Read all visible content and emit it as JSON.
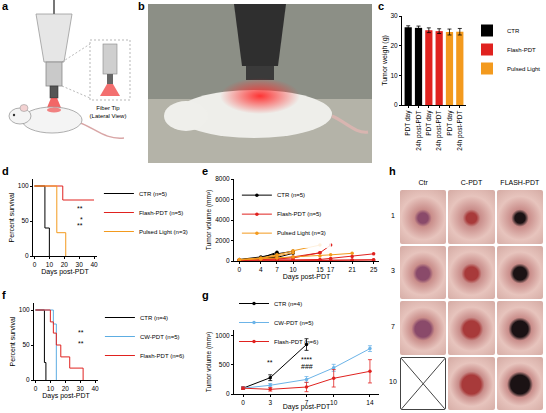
{
  "a": {
    "panel": "a",
    "type": "diagram",
    "labels": [
      "Fiber Tip",
      "(Lateral View)"
    ]
  },
  "b": {
    "panel": "b",
    "type": "photo"
  },
  "h": {
    "panel": "h",
    "type": "photo_grid",
    "columns": [
      "Ctr",
      "C-PDT",
      "FLASH-PDT"
    ],
    "rows": [
      "1",
      "3",
      "7",
      "10"
    ],
    "missing": [
      {
        "row": "10",
        "column": "Ctr"
      }
    ]
  },
  "chart_data": [
    {
      "panel": "c",
      "type": "bar",
      "ylabel": "Tumor weigh (g)",
      "categories": [
        "PDT day",
        "24h post-PDT",
        "PDT day",
        "24h post-PDT",
        "PDT day",
        "24h post-PDT"
      ],
      "ylim": [
        0,
        30
      ],
      "yticks": [
        0,
        10,
        20,
        30
      ],
      "legend": "right",
      "series": [
        {
          "name": "CTR",
          "color": "#000000",
          "values": [
            26.2,
            26.0,
            null,
            null,
            null,
            null
          ],
          "errors": [
            0.5,
            0.6,
            null,
            null,
            null,
            null
          ]
        },
        {
          "name": "Flash-PDT",
          "color": "#e0221f",
          "values": [
            null,
            null,
            25.2,
            24.9,
            null,
            null
          ],
          "errors": [
            null,
            null,
            0.8,
            0.8,
            null,
            null
          ]
        },
        {
          "name": "Pulsed Light",
          "color": "#f39a1e",
          "values": [
            null,
            null,
            null,
            null,
            24.6,
            24.7
          ],
          "errors": [
            null,
            null,
            null,
            null,
            1.0,
            1.1
          ]
        }
      ]
    },
    {
      "panel": "d",
      "type": "line",
      "line_style": "step",
      "xlabel": "Days post-PDT",
      "ylabel": "Percent survival",
      "xlim": [
        -1,
        42
      ],
      "xticks": [
        0,
        10,
        20,
        30,
        40
      ],
      "ylim": [
        0,
        110
      ],
      "yticks": [
        0,
        50,
        100
      ],
      "legend": "right",
      "annotations": [
        "**",
        "*",
        "**"
      ],
      "series": [
        {
          "name": "CTR (n=5)",
          "color": "#000000",
          "x": [
            0,
            7,
            10
          ],
          "values": [
            100,
            40,
            0
          ]
        },
        {
          "name": "Flash-PDT (n=5)",
          "color": "#e0221f",
          "x": [
            0,
            19,
            40
          ],
          "values": [
            100,
            80,
            80
          ]
        },
        {
          "name": "Pulsed Light (n=3)",
          "color": "#f39a1e",
          "x": [
            0,
            15,
            21
          ],
          "values": [
            100,
            33.3,
            0
          ]
        }
      ]
    },
    {
      "panel": "e",
      "type": "line",
      "marker": "circle",
      "xlabel": "Days post-PDT",
      "ylabel": "Tumor volume (mm³)",
      "xlim": [
        -1,
        26
      ],
      "xticks": [
        0,
        4,
        7,
        10,
        15,
        17,
        21,
        25
      ],
      "ylim": [
        0,
        8000
      ],
      "yticks": [
        0,
        2000,
        4000,
        6000,
        8000
      ],
      "legend": "upper left",
      "series": [
        {
          "name": "CTR (n=5)",
          "color": "#000000",
          "x": [
            0,
            4,
            7,
            10
          ],
          "values": [
            150,
            400,
            700,
            950
          ]
        },
        {
          "name": "CTR (n=5)",
          "color": "#000000",
          "x": [
            0,
            4,
            7
          ],
          "values": [
            120,
            300,
            850
          ]
        },
        {
          "name": "CTR (n=5)",
          "color": "#000000",
          "x": [
            0,
            4,
            7
          ],
          "values": [
            100,
            200,
            450
          ]
        },
        {
          "name": "CTR (n=5)",
          "color": "#000000",
          "x": [
            0,
            4,
            7,
            10
          ],
          "values": [
            80,
            250,
            350,
            750
          ]
        },
        {
          "name": "CTR (n=5)",
          "color": "#000000",
          "x": [
            0,
            4,
            7
          ],
          "values": [
            100,
            150,
            400
          ]
        },
        {
          "name": "Flash-PDT (n=5)",
          "color": "#e0221f",
          "x": [
            0,
            4,
            7,
            10,
            15,
            17
          ],
          "values": [
            100,
            150,
            250,
            400,
            800,
            1550
          ]
        },
        {
          "name": "Flash-PDT (n=5)",
          "color": "#e0221f",
          "x": [
            0,
            4,
            7,
            10,
            15
          ],
          "values": [
            100,
            120,
            200,
            300,
            800
          ]
        },
        {
          "name": "Flash-PDT (n=5)",
          "color": "#e0221f",
          "x": [
            0,
            4,
            7,
            10,
            15,
            17,
            21,
            25
          ],
          "values": [
            80,
            60,
            50,
            40,
            60,
            80,
            100,
            120
          ]
        },
        {
          "name": "Flash-PDT (n=5)",
          "color": "#e0221f",
          "x": [
            0,
            4,
            7,
            10,
            15,
            17,
            21,
            25
          ],
          "values": [
            90,
            70,
            60,
            50,
            50,
            60,
            80,
            100
          ]
        },
        {
          "name": "Flash-PDT (n=5)",
          "color": "#e0221f",
          "x": [
            0,
            4,
            7,
            10,
            15,
            17,
            21,
            25
          ],
          "values": [
            100,
            90,
            80,
            100,
            150,
            250,
            450,
            700
          ]
        },
        {
          "name": "Pulsed Light (n=3)",
          "color": "#f39a1e",
          "x": [
            0,
            4,
            7,
            10,
            15
          ],
          "values": [
            150,
            300,
            600,
            1000,
            1550
          ]
        },
        {
          "name": "Pulsed Light (n=3)",
          "color": "#f39a1e",
          "x": [
            0,
            4,
            7,
            10,
            15,
            17,
            21
          ],
          "values": [
            120,
            200,
            300,
            400,
            500,
            600,
            750
          ]
        },
        {
          "name": "Pulsed Light (n=3)",
          "color": "#f39a1e",
          "x": [
            0,
            4,
            7,
            10
          ],
          "values": [
            100,
            250,
            500,
            800
          ]
        }
      ]
    },
    {
      "panel": "f",
      "type": "line",
      "line_style": "step",
      "xlabel": "Days post-PDT",
      "ylabel": "Percent survival",
      "xlim": [
        -1,
        42
      ],
      "xticks": [
        0,
        10,
        20,
        30,
        40
      ],
      "ylim": [
        0,
        110
      ],
      "yticks": [
        0,
        50,
        100
      ],
      "legend": "right",
      "annotations": [
        "**",
        "**"
      ],
      "series": [
        {
          "name": "CTR (n=4)",
          "color": "#000000",
          "x": [
            0,
            6,
            7
          ],
          "values": [
            100,
            25,
            0
          ]
        },
        {
          "name": "CW-PDT (n=5)",
          "color": "#5dade2",
          "x": [
            0,
            12,
            14
          ],
          "values": [
            100,
            80,
            0
          ]
        },
        {
          "name": "Flash-PDT (n=6)",
          "color": "#e0221f",
          "x": [
            0,
            10,
            12,
            14,
            17,
            23,
            32
          ],
          "values": [
            100,
            83,
            67,
            50,
            33,
            17,
            0
          ]
        }
      ]
    },
    {
      "panel": "g",
      "type": "line",
      "marker": "circle",
      "xlabel": "Days post-PDT",
      "ylabel": "Tumor volume (mm³)",
      "xlim": [
        -1,
        15
      ],
      "xticks": [
        0,
        3,
        7,
        10,
        14
      ],
      "ylim": [
        0,
        1100
      ],
      "yticks": [
        0,
        500,
        1000
      ],
      "legend": "top",
      "annotations": [
        {
          "x": 7,
          "y": 600,
          "text": "****"
        },
        {
          "x": 7,
          "y": 470,
          "text": "###"
        },
        {
          "x": 3,
          "y": 550,
          "text": "**"
        }
      ],
      "series": [
        {
          "name": "CTR (n=4)",
          "color": "#000000",
          "x": [
            0,
            3,
            7
          ],
          "values": [
            100,
            280,
            850
          ],
          "errors": [
            20,
            50,
            100
          ]
        },
        {
          "name": "CW-PDT (n=5)",
          "color": "#6cb4e8",
          "x": [
            0,
            3,
            7,
            10,
            14
          ],
          "values": [
            100,
            150,
            250,
            450,
            780
          ],
          "errors": [
            20,
            30,
            50,
            60,
            50
          ]
        },
        {
          "name": "Flash-PDT (n=6)",
          "color": "#e0221f",
          "x": [
            0,
            3,
            7,
            10,
            14
          ],
          "values": [
            100,
            80,
            120,
            270,
            390
          ],
          "errors": [
            20,
            30,
            80,
            150,
            200
          ]
        }
      ]
    }
  ]
}
